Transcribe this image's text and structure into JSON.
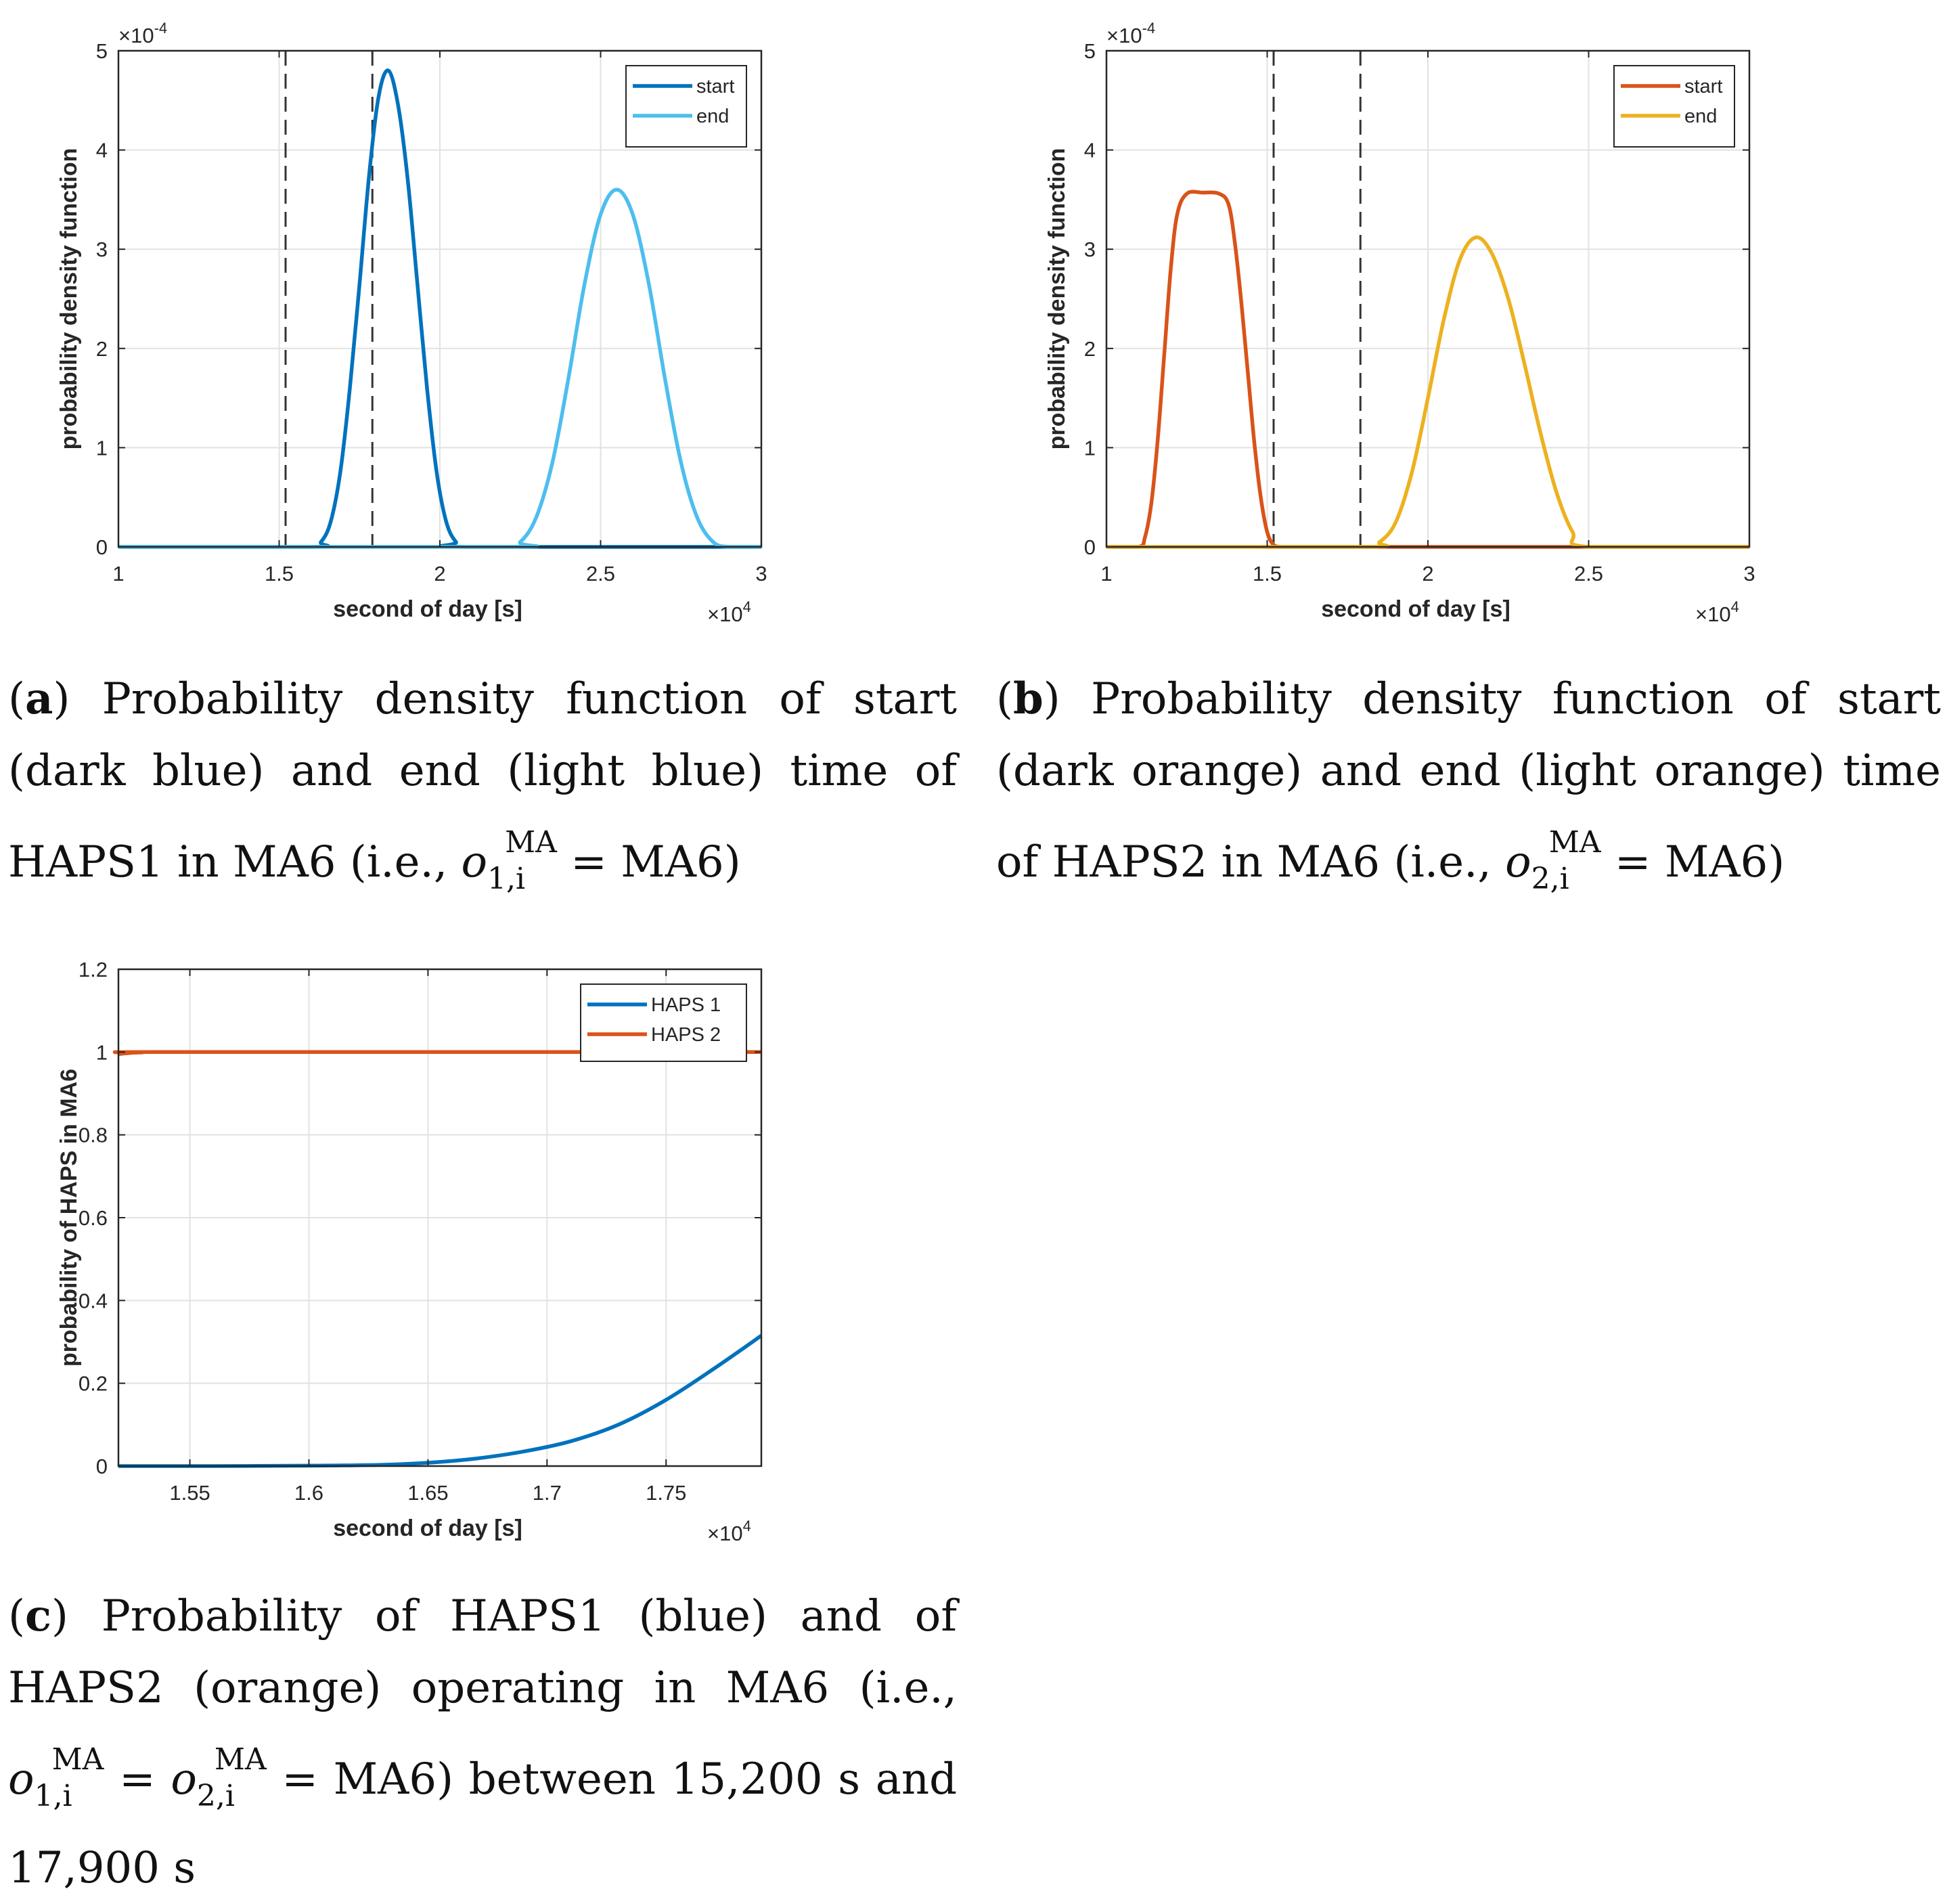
{
  "chart_data": [
    {
      "id": "a",
      "type": "line",
      "panel_label": "a",
      "ylabel": "probability density function",
      "xlabel": "second of day [s]",
      "x_exponent": "×10",
      "x_exponent_power": "4",
      "y_exponent": "×10",
      "y_exponent_power": "-4",
      "xlim": [
        10000,
        30000
      ],
      "ylim": [
        0,
        5
      ],
      "xticks": [
        10000,
        15000,
        20000,
        25000,
        30000
      ],
      "xticklabels": [
        "1",
        "1.5",
        "2",
        "2.5",
        "3"
      ],
      "yticks": [
        0,
        1,
        2,
        3,
        4,
        5
      ],
      "yticklabels": [
        "0",
        "1",
        "2",
        "3",
        "4",
        "5"
      ],
      "grid": true,
      "legend_position": "top-right",
      "vlines": [
        15200,
        17900
      ],
      "series": [
        {
          "name": "start",
          "color": "#0072BD",
          "x": [
            16000,
            16300,
            16600,
            16900,
            17200,
            17500,
            17800,
            18100,
            18400,
            18700,
            19000,
            19300,
            19600,
            19900,
            20200,
            20500,
            20800
          ],
          "y": [
            0,
            0.05,
            0.25,
            0.75,
            1.6,
            2.65,
            3.75,
            4.55,
            4.8,
            4.45,
            3.7,
            2.65,
            1.6,
            0.75,
            0.25,
            0.05,
            0
          ]
        },
        {
          "name": "end",
          "color": "#4DBEEE",
          "x": [
            22000,
            22500,
            23000,
            23500,
            24000,
            24500,
            25000,
            25500,
            26000,
            26500,
            27000,
            27500,
            28000,
            28500,
            29000
          ],
          "y": [
            0,
            0.05,
            0.3,
            0.85,
            1.7,
            2.65,
            3.35,
            3.6,
            3.35,
            2.65,
            1.7,
            0.85,
            0.3,
            0.05,
            0
          ]
        }
      ]
    },
    {
      "id": "b",
      "type": "line",
      "panel_label": "b",
      "ylabel": "probability density function",
      "xlabel": "second of day [s]",
      "x_exponent": "×10",
      "x_exponent_power": "4",
      "y_exponent": "×10",
      "y_exponent_power": "-4",
      "xlim": [
        10000,
        30000
      ],
      "ylim": [
        0,
        5
      ],
      "xticks": [
        10000,
        15000,
        20000,
        25000,
        30000
      ],
      "xticklabels": [
        "1",
        "1.5",
        "2",
        "2.5",
        "3"
      ],
      "yticks": [
        0,
        1,
        2,
        3,
        4,
        5
      ],
      "yticklabels": [
        "0",
        "1",
        "2",
        "3",
        "4",
        "5"
      ],
      "grid": true,
      "legend_position": "top-right",
      "vlines": [
        15200,
        17900
      ],
      "series": [
        {
          "name": "start",
          "color": "#D95319",
          "x": [
            10000,
            11000,
            11200,
            11400,
            11600,
            11800,
            12000,
            12200,
            12500,
            13000,
            13500,
            13800,
            14000,
            14200,
            14400,
            14600,
            14800,
            15000,
            15200,
            15400,
            15600,
            16000,
            30000
          ],
          "y": [
            0,
            0,
            0.1,
            0.45,
            1.1,
            1.95,
            2.8,
            3.35,
            3.56,
            3.57,
            3.56,
            3.45,
            3.05,
            2.45,
            1.75,
            1.05,
            0.5,
            0.15,
            0.02,
            0,
            0,
            0,
            0
          ]
        },
        {
          "name": "end",
          "color": "#EDB120",
          "x": [
            10000,
            18000,
            18500,
            19000,
            19500,
            20000,
            20500,
            21000,
            21500,
            22000,
            22500,
            23000,
            23500,
            24000,
            24500,
            25000,
            30000
          ],
          "y": [
            0,
            0,
            0.05,
            0.25,
            0.75,
            1.5,
            2.3,
            2.9,
            3.12,
            2.95,
            2.5,
            1.85,
            1.15,
            0.55,
            0.15,
            0,
            0
          ]
        }
      ]
    },
    {
      "id": "c",
      "type": "line",
      "panel_label": "c",
      "ylabel": "probability of HAPS in MA6",
      "xlabel": "second of day [s]",
      "x_exponent": "×10",
      "x_exponent_power": "4",
      "xlim": [
        15200,
        17900
      ],
      "ylim": [
        0,
        1.2
      ],
      "xticks": [
        15500,
        16000,
        16500,
        17000,
        17500
      ],
      "xticklabels": [
        "1.55",
        "1.6",
        "1.65",
        "1.7",
        "1.75"
      ],
      "yticks": [
        0,
        0.2,
        0.4,
        0.6,
        0.8,
        1,
        1.2
      ],
      "yticklabels": [
        "0",
        "0.2",
        "0.4",
        "0.6",
        "0.8",
        "1",
        "1.2"
      ],
      "grid": true,
      "legend_position": "top-right",
      "series": [
        {
          "name": "HAPS 1",
          "color": "#0072BD",
          "x": [
            15200,
            15600,
            16000,
            16300,
            16500,
            16700,
            16900,
            17100,
            17300,
            17500,
            17700,
            17900
          ],
          "y": [
            0,
            0,
            0.001,
            0.003,
            0.008,
            0.018,
            0.035,
            0.06,
            0.1,
            0.16,
            0.235,
            0.315
          ]
        },
        {
          "name": "HAPS 2",
          "color": "#D95319",
          "x": [
            15200,
            15250,
            15300,
            15400,
            17900
          ],
          "y": [
            0.995,
            0.998,
            0.999,
            1,
            1
          ]
        }
      ]
    }
  ],
  "captions": {
    "a": {
      "label": "a",
      "text1": "Probability density function of start (dark blue) and end (light blue) time of HAPS1 in MA6 (i.e.,",
      "var": "o",
      "sub": "1,i",
      "sup": "MA",
      "text2": "= MA6)"
    },
    "b": {
      "label": "b",
      "text1": "Probability density function of start (dark orange) and end (light orange) time of HAPS2 in MA6 (i.e.,",
      "var": "o",
      "sub": "2,i",
      "sup": "MA",
      "text2": "= MA6)"
    },
    "c": {
      "label": "c",
      "text1": "Probability of HAPS1 (blue) and of HAPS2 (orange) operating in MA6 (i.e.,",
      "var1": "o",
      "sub1": "1,i",
      "sup1": "MA",
      "eq": "=",
      "var2": "o",
      "sub2": "2,i",
      "sup2": "MA",
      "text2": "= MA6) between 15,200 s and 17,900 s"
    }
  }
}
